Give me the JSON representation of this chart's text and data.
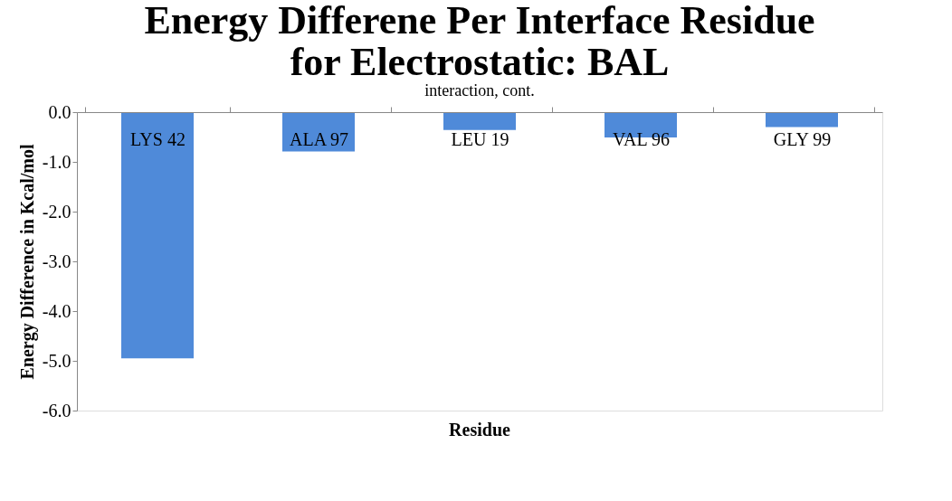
{
  "chart_data": {
    "type": "bar",
    "title": [
      "Energy Differene Per Interface Residue",
      "for Electrostatic: BAL"
    ],
    "xlabel": "Residue",
    "ylabel": "Energy Difference in Kcal/mol",
    "annotations": [
      "interaction, cont."
    ],
    "categories": [
      "LYS  42",
      "ALA  97",
      "LEU  19",
      "VAL  96",
      "GLY 99"
    ],
    "values": [
      -4.95,
      -0.79,
      -0.36,
      -0.51,
      -0.3
    ],
    "color": "#4f8ad9",
    "ylim": [
      -6.0,
      0.0
    ],
    "yticks": [
      {
        "value": 0,
        "label": "0.0"
      },
      {
        "value": -1,
        "label": "-1.0"
      },
      {
        "value": -2,
        "label": "-2.0"
      },
      {
        "value": -3,
        "label": "-3.0"
      },
      {
        "value": -4,
        "label": "-4.0"
      },
      {
        "value": -5,
        "label": "-5.0"
      },
      {
        "value": -6,
        "label": "-6.0"
      }
    ],
    "grid": false
  }
}
